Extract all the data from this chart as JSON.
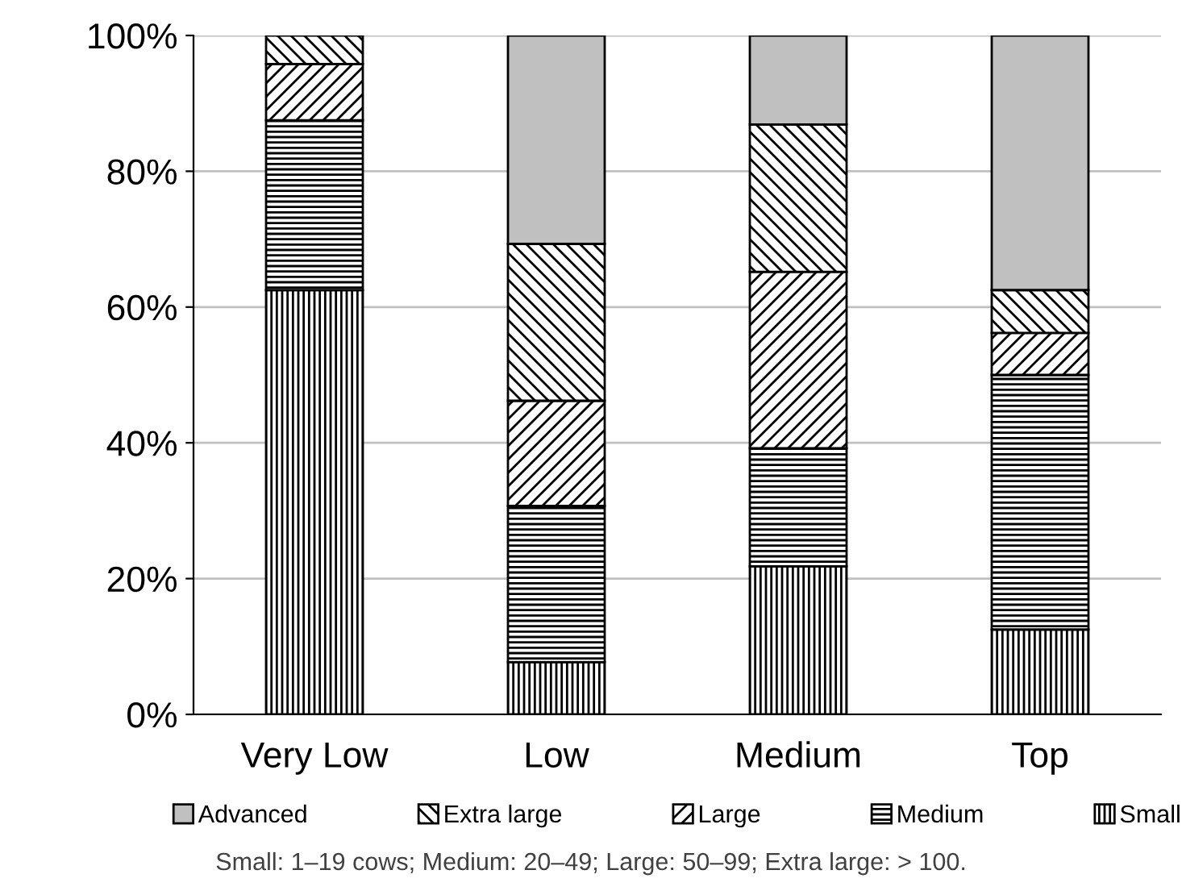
{
  "chart_data": {
    "type": "bar",
    "stacked": true,
    "categories": [
      "Very Low",
      "Low",
      "Medium",
      "Top"
    ],
    "series": [
      {
        "name": "Small",
        "color": "#000000",
        "values": [
          62.5,
          7.7,
          21.8,
          12.5
        ]
      },
      {
        "name": "Medium",
        "color": "#000000",
        "values": [
          25,
          23,
          17.4,
          37.5
        ]
      },
      {
        "name": "Large",
        "color": "#000000",
        "values": [
          8.3,
          15.5,
          26,
          6.2
        ]
      },
      {
        "name": "Extra large",
        "color": "#000000",
        "values": [
          4.2,
          23.1,
          21.7,
          6.3
        ]
      },
      {
        "name": "Advanced",
        "color": "#c0c0c0",
        "values": [
          null,
          30.7,
          13.1,
          37.5
        ]
      }
    ],
    "ylim": [
      0,
      100
    ],
    "yticks": [
      {
        "value": 0,
        "label": "0%"
      },
      {
        "value": 20,
        "label": "20%"
      },
      {
        "value": 40,
        "label": "40%"
      },
      {
        "value": 60,
        "label": "60%"
      },
      {
        "value": 80,
        "label": "80%"
      },
      {
        "value": 100,
        "label": "100%"
      }
    ],
    "grid": "y",
    "legend": "bottom",
    "annotations": [
      "Small: 1–19 cows; Medium: 20–49; Large: 50–99; Extra large: > 100."
    ]
  }
}
